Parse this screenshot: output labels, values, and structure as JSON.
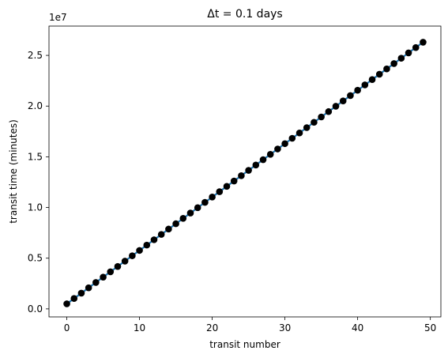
{
  "chart_data": {
    "type": "scatter",
    "title": "Δt = 0.1 days",
    "xlabel": "transit number",
    "ylabel": "transit time (minutes)",
    "y_offset_label": "1e7",
    "xlim": [
      -2.45,
      51.45
    ],
    "ylim": [
      -790000.0,
      27890000.0
    ],
    "x_ticks": [
      0,
      10,
      20,
      30,
      40,
      50
    ],
    "x_tick_labels": [
      "0",
      "10",
      "20",
      "30",
      "40",
      "50"
    ],
    "y_ticks": [
      0,
      5000000,
      10000000,
      15000000,
      20000000,
      25000000
    ],
    "y_tick_labels": [
      "0.0",
      "0.5",
      "1.0",
      "1.5",
      "2.0",
      "2.5"
    ],
    "grid": false,
    "series": [
      {
        "marker": "circle",
        "marker_color": "#000000",
        "line_color": "#1f77b4",
        "x_start": 0,
        "x_end": 49,
        "y_start": 500000,
        "y_end": 26300000
      }
    ],
    "colors": {
      "marker": "#000000",
      "line": "#1f77b4",
      "axes": "#000000"
    }
  }
}
